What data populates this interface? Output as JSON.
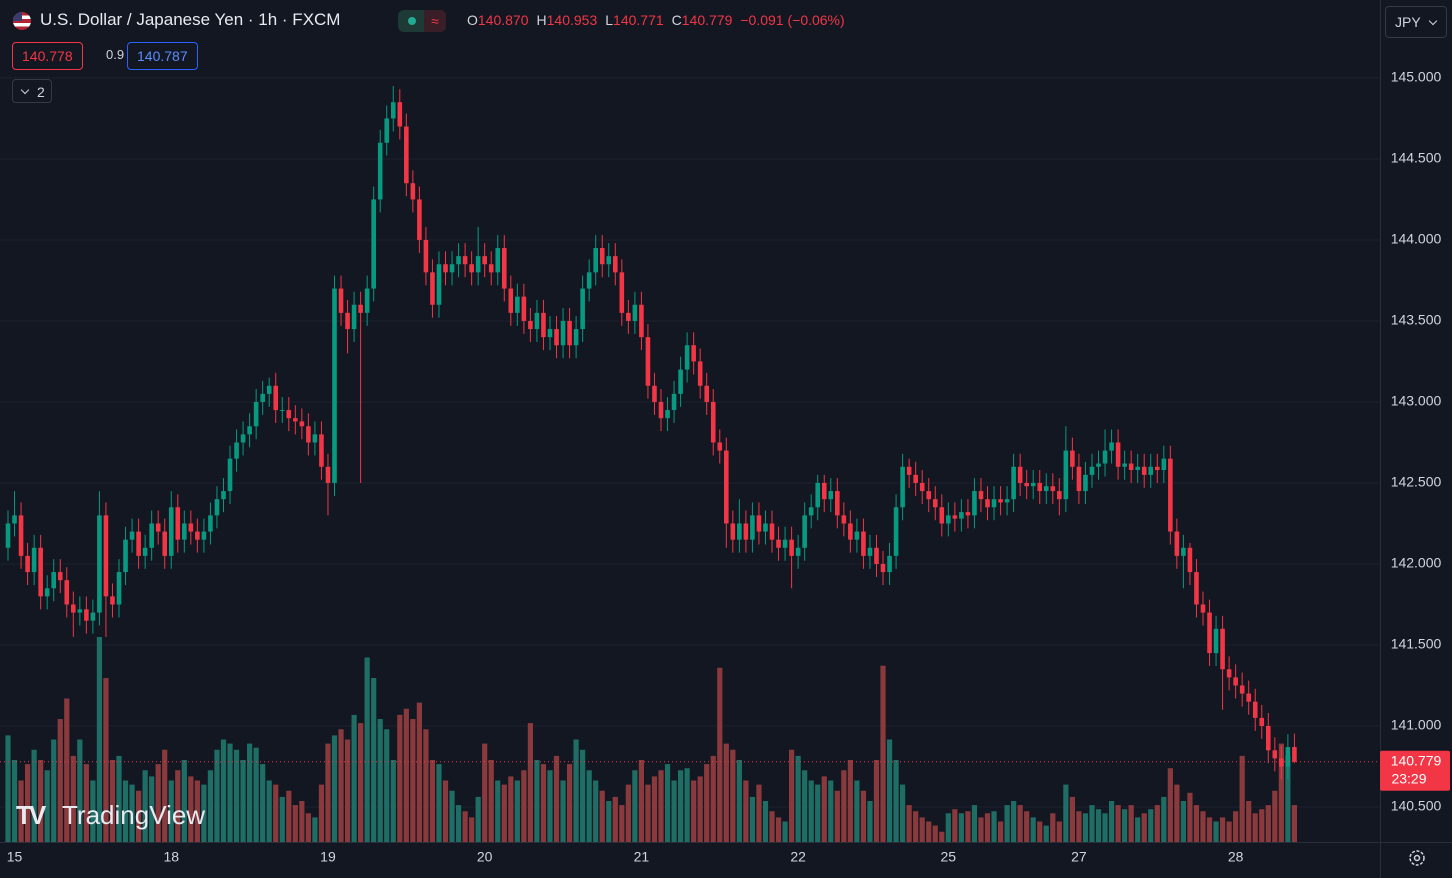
{
  "header": {
    "title": "U.S. Dollar / Japanese Yen · 1h · FXCM",
    "ohlc": [
      {
        "key": "O",
        "value": "140.870"
      },
      {
        "key": "H",
        "value": "140.953"
      },
      {
        "key": "L",
        "value": "140.771"
      },
      {
        "key": "C",
        "value": "140.779"
      }
    ],
    "change": "−0.091 (−0.06%)",
    "bid": "140.778",
    "spread": "0.9",
    "ask": "140.787",
    "indicators_count": "2",
    "currency": "JPY",
    "watermark": "TradingView"
  },
  "chart_data": {
    "type": "candlestick",
    "categories": [
      null,
      "15",
      null,
      null,
      null,
      null,
      null,
      null,
      null,
      null,
      null,
      null,
      null,
      null,
      null,
      null,
      null,
      null,
      null,
      null,
      null,
      null,
      null,
      null,
      null,
      "18",
      null,
      null,
      null,
      null,
      null,
      null,
      null,
      null,
      null,
      null,
      null,
      null,
      null,
      null,
      null,
      null,
      null,
      null,
      null,
      null,
      null,
      null,
      null,
      "19",
      null,
      null,
      null,
      null,
      null,
      null,
      null,
      null,
      null,
      null,
      null,
      null,
      null,
      null,
      null,
      null,
      null,
      null,
      null,
      null,
      null,
      null,
      null,
      "20",
      null,
      null,
      null,
      null,
      null,
      null,
      null,
      null,
      null,
      null,
      null,
      null,
      null,
      null,
      null,
      null,
      null,
      null,
      null,
      null,
      null,
      null,
      null,
      "21",
      null,
      null,
      null,
      null,
      null,
      null,
      null,
      null,
      null,
      null,
      null,
      null,
      null,
      null,
      null,
      null,
      null,
      null,
      null,
      null,
      null,
      null,
      null,
      "22",
      null,
      null,
      null,
      null,
      null,
      null,
      null,
      null,
      null,
      null,
      null,
      null,
      null,
      null,
      null,
      null,
      null,
      null,
      null,
      null,
      null,
      null,
      "25",
      null,
      null,
      null,
      null,
      null,
      null,
      null,
      null,
      null,
      null,
      null,
      null,
      null,
      null,
      null,
      null,
      null,
      null,
      null,
      "27",
      null,
      null,
      null,
      null,
      null,
      null,
      null,
      null,
      null,
      null,
      null,
      null,
      null,
      null,
      null,
      null,
      null,
      null,
      null,
      null,
      null,
      null,
      null,
      "28",
      null,
      null,
      null,
      null,
      null,
      null,
      null,
      null,
      null
    ],
    "open": [
      142.1,
      142.25,
      142.3,
      142.05,
      141.95,
      142.1,
      141.8,
      141.85,
      141.95,
      141.9,
      141.75,
      141.7,
      141.72,
      141.65,
      141.7,
      142.3,
      141.8,
      141.75,
      141.95,
      142.15,
      142.2,
      142.05,
      142.1,
      142.25,
      142.2,
      142.05,
      142.35,
      142.15,
      142.25,
      142.2,
      142.15,
      142.2,
      142.3,
      142.4,
      142.45,
      142.65,
      142.75,
      142.8,
      142.85,
      143.0,
      143.05,
      143.1,
      142.95,
      142.95,
      142.9,
      142.88,
      142.85,
      142.75,
      142.8,
      142.6,
      142.5,
      143.7,
      143.55,
      143.45,
      143.6,
      143.55,
      143.7,
      144.25,
      144.6,
      144.75,
      144.85,
      144.7,
      144.35,
      144.25,
      144.0,
      143.8,
      143.6,
      143.85,
      143.8,
      143.85,
      143.9,
      143.85,
      143.8,
      143.9,
      143.85,
      143.8,
      143.95,
      143.7,
      143.55,
      143.65,
      143.5,
      143.45,
      143.55,
      143.4,
      143.45,
      143.35,
      143.5,
      143.35,
      143.45,
      143.7,
      143.8,
      143.95,
      143.85,
      143.9,
      143.8,
      143.55,
      143.5,
      143.6,
      143.4,
      143.1,
      143.0,
      142.9,
      142.95,
      143.05,
      143.2,
      143.35,
      143.25,
      143.1,
      143.0,
      142.75,
      142.7,
      142.25,
      142.15,
      142.25,
      142.15,
      142.3,
      142.2,
      142.25,
      142.15,
      142.1,
      142.15,
      142.05,
      142.1,
      142.3,
      142.35,
      142.5,
      142.4,
      142.45,
      142.3,
      142.25,
      142.15,
      142.2,
      142.05,
      142.1,
      142.0,
      141.95,
      142.05,
      142.35,
      142.6,
      142.55,
      142.5,
      142.45,
      142.4,
      142.35,
      142.25,
      142.3,
      142.28,
      142.32,
      142.3,
      142.45,
      142.4,
      142.35,
      142.4,
      142.38,
      142.4,
      142.6,
      142.5,
      142.48,
      142.5,
      142.45,
      142.48,
      142.45,
      142.4,
      142.7,
      142.6,
      142.45,
      142.55,
      142.6,
      142.62,
      142.7,
      142.75,
      142.6,
      142.62,
      142.58,
      142.6,
      142.55,
      142.6,
      142.58,
      142.65,
      142.2,
      142.05,
      142.1,
      141.95,
      141.75,
      141.7,
      141.45,
      141.6,
      141.35,
      141.3,
      141.25,
      141.2,
      141.15,
      141.05,
      141.0,
      140.85,
      140.8,
      140.75,
      140.87
    ],
    "high": [
      142.33,
      142.45,
      142.38,
      142.13,
      142.18,
      142.18,
      141.93,
      142.03,
      142.03,
      141.98,
      141.83,
      141.8,
      141.8,
      141.78,
      142.45,
      142.38,
      141.88,
      142.03,
      142.23,
      142.28,
      142.28,
      142.18,
      142.33,
      142.33,
      142.28,
      142.45,
      142.43,
      142.33,
      142.33,
      142.28,
      142.28,
      142.38,
      142.48,
      142.53,
      142.73,
      142.83,
      142.88,
      142.93,
      143.08,
      143.13,
      143.15,
      143.18,
      143.03,
      143.03,
      142.98,
      142.96,
      142.93,
      142.88,
      142.88,
      142.68,
      143.78,
      143.78,
      143.63,
      143.68,
      143.68,
      143.78,
      144.33,
      144.68,
      144.83,
      144.95,
      144.93,
      144.78,
      144.43,
      144.33,
      144.08,
      143.88,
      143.93,
      143.93,
      143.93,
      143.98,
      143.98,
      143.93,
      144.08,
      143.98,
      143.93,
      144.03,
      144.03,
      143.78,
      143.73,
      143.73,
      143.58,
      143.63,
      143.63,
      143.53,
      143.53,
      143.58,
      143.58,
      143.53,
      143.78,
      143.88,
      144.03,
      144.03,
      143.98,
      143.98,
      143.88,
      143.63,
      143.68,
      143.68,
      143.48,
      143.18,
      143.08,
      143.03,
      143.13,
      143.28,
      143.43,
      143.43,
      143.33,
      143.18,
      143.08,
      142.83,
      142.78,
      142.33,
      142.4,
      142.33,
      142.38,
      142.38,
      142.33,
      142.33,
      142.23,
      142.23,
      142.23,
      142.18,
      142.38,
      142.43,
      142.55,
      142.55,
      142.53,
      142.53,
      142.38,
      142.33,
      142.28,
      142.28,
      142.18,
      142.18,
      142.08,
      142.13,
      142.43,
      142.68,
      142.65,
      142.63,
      142.58,
      142.53,
      142.48,
      142.43,
      142.38,
      142.38,
      142.4,
      142.4,
      142.53,
      142.53,
      142.48,
      142.48,
      142.48,
      142.48,
      142.68,
      142.68,
      142.58,
      142.58,
      142.58,
      142.56,
      142.56,
      142.53,
      142.85,
      142.78,
      142.68,
      142.63,
      142.68,
      142.7,
      142.83,
      142.83,
      142.83,
      142.7,
      142.7,
      142.68,
      142.68,
      142.68,
      142.68,
      142.73,
      142.73,
      142.28,
      142.18,
      142.13,
      142.03,
      141.83,
      141.78,
      141.68,
      141.68,
      141.43,
      141.38,
      141.33,
      141.28,
      141.23,
      141.13,
      141.08,
      140.93,
      140.88,
      140.95,
      140.953
    ],
    "low": [
      142.02,
      142.17,
      141.97,
      141.87,
      141.87,
      141.72,
      141.72,
      141.77,
      141.82,
      141.67,
      141.55,
      141.62,
      141.57,
      141.57,
      141.62,
      141.55,
      141.67,
      141.67,
      141.87,
      142.07,
      141.97,
      141.97,
      142.02,
      142.12,
      141.97,
      141.97,
      142.07,
      142.07,
      142.12,
      142.07,
      142.07,
      142.12,
      142.22,
      142.32,
      142.37,
      142.57,
      142.67,
      142.72,
      142.77,
      142.92,
      142.97,
      142.87,
      142.87,
      142.82,
      142.8,
      142.77,
      142.67,
      142.67,
      142.52,
      142.3,
      142.42,
      143.47,
      143.3,
      143.37,
      142.5,
      143.47,
      143.62,
      144.17,
      144.52,
      144.67,
      144.62,
      144.27,
      144.17,
      143.92,
      143.72,
      143.52,
      143.52,
      143.72,
      143.72,
      143.77,
      143.77,
      143.72,
      143.72,
      143.77,
      143.72,
      143.72,
      143.62,
      143.47,
      143.47,
      143.42,
      143.37,
      143.37,
      143.32,
      143.32,
      143.27,
      143.27,
      143.27,
      143.27,
      143.37,
      143.62,
      143.72,
      143.77,
      143.77,
      143.72,
      143.47,
      143.42,
      143.42,
      143.32,
      143.02,
      142.92,
      142.82,
      142.82,
      142.87,
      142.97,
      143.12,
      143.17,
      143.02,
      142.92,
      142.67,
      142.62,
      142.1,
      142.07,
      142.07,
      142.07,
      142.07,
      142.12,
      142.12,
      142.07,
      142.02,
      142.02,
      141.85,
      141.97,
      142.02,
      142.22,
      142.27,
      142.32,
      142.32,
      142.22,
      142.17,
      142.07,
      142.07,
      141.97,
      141.97,
      141.92,
      141.87,
      141.87,
      141.97,
      142.27,
      142.47,
      142.42,
      142.37,
      142.32,
      142.27,
      142.17,
      142.17,
      142.2,
      142.2,
      142.22,
      142.22,
      142.32,
      142.27,
      142.27,
      142.3,
      142.3,
      142.32,
      142.42,
      142.4,
      142.4,
      142.37,
      142.37,
      142.37,
      142.3,
      142.32,
      142.52,
      142.37,
      142.37,
      142.47,
      142.52,
      142.54,
      142.62,
      142.52,
      142.52,
      142.5,
      142.5,
      142.47,
      142.47,
      142.5,
      142.5,
      142.12,
      141.97,
      141.85,
      141.87,
      141.67,
      141.62,
      141.37,
      141.37,
      141.1,
      141.22,
      141.17,
      141.12,
      141.07,
      140.97,
      140.92,
      140.77,
      140.72,
      140.67,
      140.67,
      140.771
    ],
    "close": [
      142.25,
      142.3,
      142.05,
      141.95,
      142.1,
      141.8,
      141.85,
      141.95,
      141.9,
      141.75,
      141.7,
      141.72,
      141.65,
      141.7,
      142.3,
      141.8,
      141.75,
      141.95,
      142.15,
      142.2,
      142.05,
      142.1,
      142.25,
      142.2,
      142.05,
      142.35,
      142.15,
      142.25,
      142.2,
      142.15,
      142.2,
      142.3,
      142.4,
      142.45,
      142.65,
      142.75,
      142.8,
      142.85,
      143.0,
      143.05,
      143.1,
      142.95,
      142.95,
      142.9,
      142.88,
      142.85,
      142.75,
      142.8,
      142.6,
      142.5,
      143.7,
      143.55,
      143.45,
      143.6,
      143.55,
      143.7,
      144.25,
      144.6,
      144.75,
      144.85,
      144.7,
      144.35,
      144.25,
      144.0,
      143.8,
      143.6,
      143.85,
      143.8,
      143.85,
      143.9,
      143.85,
      143.8,
      143.9,
      143.85,
      143.8,
      143.95,
      143.7,
      143.55,
      143.65,
      143.5,
      143.45,
      143.55,
      143.4,
      143.45,
      143.35,
      143.5,
      143.35,
      143.45,
      143.7,
      143.8,
      143.95,
      143.85,
      143.9,
      143.8,
      143.55,
      143.5,
      143.6,
      143.4,
      143.1,
      143.0,
      142.9,
      142.95,
      143.05,
      143.2,
      143.35,
      143.25,
      143.1,
      143.0,
      142.75,
      142.7,
      142.25,
      142.15,
      142.25,
      142.15,
      142.3,
      142.2,
      142.25,
      142.15,
      142.1,
      142.15,
      142.05,
      142.1,
      142.3,
      142.35,
      142.5,
      142.4,
      142.45,
      142.3,
      142.25,
      142.15,
      142.2,
      142.05,
      142.1,
      142.0,
      141.95,
      142.05,
      142.35,
      142.6,
      142.55,
      142.5,
      142.45,
      142.4,
      142.35,
      142.25,
      142.3,
      142.28,
      142.32,
      142.3,
      142.45,
      142.4,
      142.35,
      142.4,
      142.38,
      142.4,
      142.6,
      142.5,
      142.48,
      142.5,
      142.45,
      142.48,
      142.45,
      142.4,
      142.7,
      142.6,
      142.45,
      142.55,
      142.6,
      142.62,
      142.7,
      142.75,
      142.6,
      142.62,
      142.58,
      142.6,
      142.55,
      142.6,
      142.58,
      142.65,
      142.2,
      142.05,
      142.1,
      141.95,
      141.75,
      141.7,
      141.45,
      141.6,
      141.35,
      141.3,
      141.25,
      141.2,
      141.15,
      141.05,
      141.0,
      140.85,
      140.8,
      140.75,
      140.87,
      140.779
    ],
    "volume": [
      52,
      40,
      30,
      38,
      45,
      40,
      35,
      50,
      60,
      70,
      42,
      50,
      38,
      30,
      100,
      80,
      40,
      42,
      30,
      28,
      25,
      35,
      32,
      38,
      45,
      30,
      35,
      40,
      32,
      30,
      28,
      35,
      45,
      50,
      48,
      45,
      40,
      48,
      46,
      38,
      30,
      28,
      22,
      25,
      18,
      20,
      14,
      12,
      28,
      48,
      52,
      55,
      50,
      62,
      58,
      90,
      80,
      60,
      55,
      40,
      62,
      65,
      60,
      68,
      55,
      40,
      38,
      30,
      25,
      18,
      15,
      12,
      22,
      48,
      40,
      30,
      28,
      32,
      30,
      35,
      58,
      40,
      38,
      35,
      42,
      30,
      38,
      50,
      45,
      35,
      30,
      25,
      20,
      22,
      18,
      28,
      35,
      40,
      28,
      32,
      35,
      38,
      30,
      35,
      36,
      30,
      32,
      38,
      42,
      85,
      48,
      45,
      40,
      30,
      22,
      28,
      20,
      15,
      12,
      10,
      45,
      42,
      35,
      30,
      28,
      32,
      30,
      25,
      35,
      40,
      30,
      25,
      20,
      40,
      86,
      50,
      40,
      28,
      18,
      15,
      12,
      10,
      8,
      5,
      14,
      16,
      14,
      15,
      18,
      12,
      14,
      15,
      10,
      18,
      20,
      18,
      15,
      12,
      10,
      8,
      14,
      10,
      28,
      22,
      15,
      14,
      18,
      16,
      14,
      20,
      18,
      16,
      18,
      12,
      14,
      16,
      18,
      22,
      36,
      28,
      20,
      24,
      18,
      15,
      12,
      10,
      12,
      10,
      15,
      42,
      20,
      14,
      16,
      18,
      25,
      48,
      42,
      18
    ],
    "up_color": "#089981",
    "down_color": "#f23645",
    "volume_up_color": "#1e6e66",
    "volume_down_color": "#8a3a3d",
    "ylim": [
      140.284,
      145.481
    ],
    "yticks": [
      {
        "value": 140.5,
        "label": "140.500"
      },
      {
        "value": 141,
        "label": "141.000"
      },
      {
        "value": 141.5,
        "label": "141.500"
      },
      {
        "value": 142,
        "label": "142.000"
      },
      {
        "value": 142.5,
        "label": "142.500"
      },
      {
        "value": 143,
        "label": "143.000"
      },
      {
        "value": 143.5,
        "label": "143.500"
      },
      {
        "value": 144,
        "label": "144.000"
      },
      {
        "value": 144.5,
        "label": "144.500"
      },
      {
        "value": 145,
        "label": "145.000"
      }
    ],
    "grid": true,
    "last_price_label": "140.779",
    "countdown": "23:29"
  }
}
